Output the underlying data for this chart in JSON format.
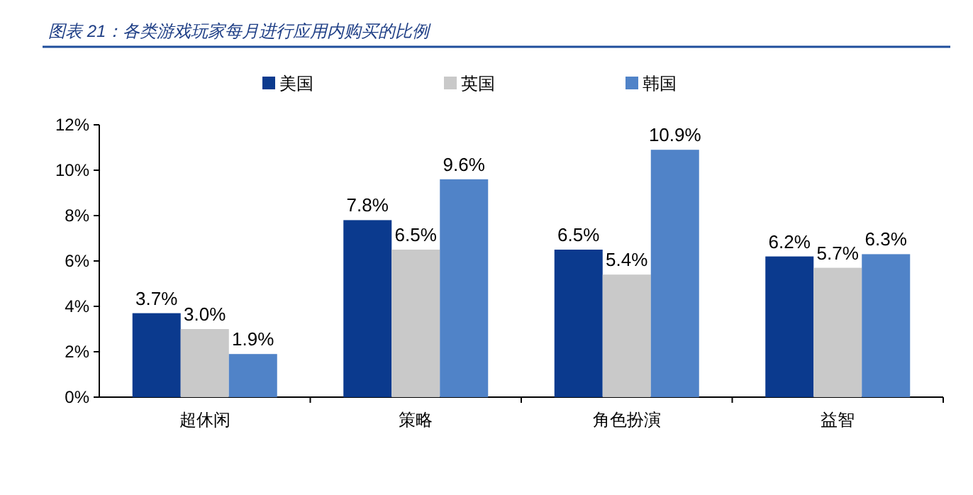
{
  "chart_data": {
    "type": "bar",
    "title": "图表 21：各类游戏玩家每月进行应用内购买的比例",
    "categories": [
      "超休闲",
      "策略",
      "角色扮演",
      "益智"
    ],
    "series": [
      {
        "name": "美国",
        "color": "#0b3a8e",
        "values": [
          3.7,
          7.8,
          6.5,
          6.2
        ]
      },
      {
        "name": "英国",
        "color": "#c9c9c9",
        "values": [
          3.0,
          6.5,
          5.4,
          5.7
        ]
      },
      {
        "name": "韩国",
        "color": "#5083c8",
        "values": [
          1.9,
          9.6,
          10.9,
          6.3
        ]
      }
    ],
    "ylim": [
      0,
      12
    ],
    "yticks": [
      {
        "value": 0,
        "label": "0%"
      },
      {
        "value": 2,
        "label": "2%"
      },
      {
        "value": 4,
        "label": "4%"
      },
      {
        "value": 6,
        "label": "6%"
      },
      {
        "value": 8,
        "label": "8%"
      },
      {
        "value": 10,
        "label": "10%"
      },
      {
        "value": 12,
        "label": "12%"
      }
    ],
    "value_labels": [
      [
        "3.7%",
        "7.8%",
        "6.5%",
        "6.2%"
      ],
      [
        "3.0%",
        "6.5%",
        "5.4%",
        "5.7%"
      ],
      [
        "1.9%",
        "9.6%",
        "10.9%",
        "6.3%"
      ]
    ],
    "legend": "top",
    "grid": false
  }
}
